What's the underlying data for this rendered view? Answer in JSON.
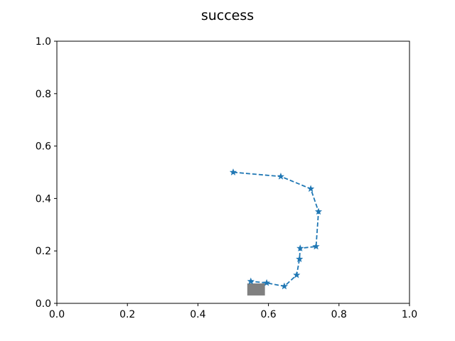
{
  "chart_data": {
    "type": "line",
    "title": "success",
    "xlabel": "",
    "ylabel": "",
    "xlim": [
      0.0,
      1.0
    ],
    "ylim": [
      0.0,
      1.0
    ],
    "xticks": [
      "0.0",
      "0.2",
      "0.4",
      "0.6",
      "0.8",
      "1.0"
    ],
    "yticks": [
      "0.0",
      "0.2",
      "0.4",
      "0.6",
      "0.8",
      "1.0"
    ],
    "grid": false,
    "series": [
      {
        "color": "#1f77b4",
        "linestyle": "dashed",
        "marker": "star",
        "x": [
          0.5,
          0.635,
          0.72,
          0.742,
          0.735,
          0.69,
          0.688,
          0.68,
          0.645,
          0.595,
          0.55
        ],
        "y": [
          0.5,
          0.484,
          0.437,
          0.35,
          0.217,
          0.21,
          0.169,
          0.108,
          0.065,
          0.078,
          0.084
        ]
      }
    ],
    "target": {
      "shape": "square",
      "color": "#808080",
      "x_range": [
        0.54,
        0.59
      ],
      "y_range": [
        0.03,
        0.076
      ]
    }
  }
}
